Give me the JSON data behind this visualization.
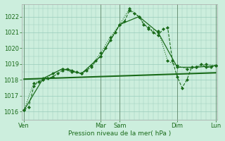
{
  "xlabel": "Pression niveau de la mer( hPa )",
  "background_color": "#cceedd",
  "grid_color": "#99ccbb",
  "line_color": "#1a6b1a",
  "ylim": [
    1015.5,
    1022.8
  ],
  "xlim": [
    -3,
    242
  ],
  "yticks": [
    1016,
    1017,
    1018,
    1019,
    1020,
    1021,
    1022
  ],
  "day_labels": [
    "Ven",
    "Mar",
    "Sam",
    "Dim",
    "Lun"
  ],
  "day_x": [
    0,
    96,
    120,
    192,
    240
  ],
  "vline_color": "#446644",
  "series1": {
    "x": [
      0,
      6,
      12,
      18,
      24,
      30,
      36,
      42,
      48,
      54,
      60,
      66,
      72,
      78,
      84,
      90,
      96,
      102,
      108,
      114,
      120,
      126,
      132,
      138,
      144,
      150,
      156,
      162,
      168,
      174,
      180,
      186,
      192,
      198,
      204,
      210,
      216,
      222,
      228,
      234,
      240
    ],
    "y": [
      1016.1,
      1016.3,
      1017.6,
      1017.9,
      1018.0,
      1018.1,
      1018.2,
      1018.4,
      1018.6,
      1018.7,
      1018.6,
      1018.5,
      1018.4,
      1018.6,
      1018.8,
      1019.2,
      1019.5,
      1020.0,
      1020.5,
      1021.0,
      1021.5,
      1021.7,
      1022.4,
      1022.2,
      1022.0,
      1021.5,
      1021.3,
      1021.0,
      1020.8,
      1021.2,
      1021.3,
      1019.2,
      1018.2,
      1017.5,
      1018.0,
      1018.8,
      1018.8,
      1019.0,
      1018.8,
      1018.8,
      1018.9
    ],
    "linestyle": "--",
    "linewidth": 0.8,
    "markersize": 2.5
  },
  "series2": {
    "x": [
      0,
      12,
      24,
      36,
      48,
      60,
      72,
      84,
      96,
      108,
      120,
      132,
      144,
      156,
      168,
      180,
      192,
      204,
      216,
      228,
      240
    ],
    "y": [
      1016.1,
      1017.8,
      1018.0,
      1018.4,
      1018.7,
      1018.5,
      1018.4,
      1018.9,
      1019.7,
      1020.7,
      1021.5,
      1022.5,
      1022.0,
      1021.2,
      1021.1,
      1019.2,
      1018.9,
      1018.7,
      1018.8,
      1019.0,
      1018.9
    ],
    "linestyle": ":",
    "linewidth": 0.8,
    "markersize": 2.5
  },
  "series3": {
    "x": [
      0,
      24,
      48,
      72,
      96,
      120,
      144,
      168,
      192,
      216,
      240
    ],
    "y": [
      1016.1,
      1018.1,
      1018.7,
      1018.4,
      1019.5,
      1021.5,
      1022.0,
      1021.0,
      1018.8,
      1018.8,
      1018.9
    ],
    "linestyle": "-",
    "linewidth": 0.9,
    "markersize": 2.5
  },
  "series4": {
    "x": [
      0,
      240
    ],
    "y": [
      1018.05,
      1018.45
    ],
    "linestyle": "-",
    "linewidth": 1.5,
    "markersize": 0
  }
}
